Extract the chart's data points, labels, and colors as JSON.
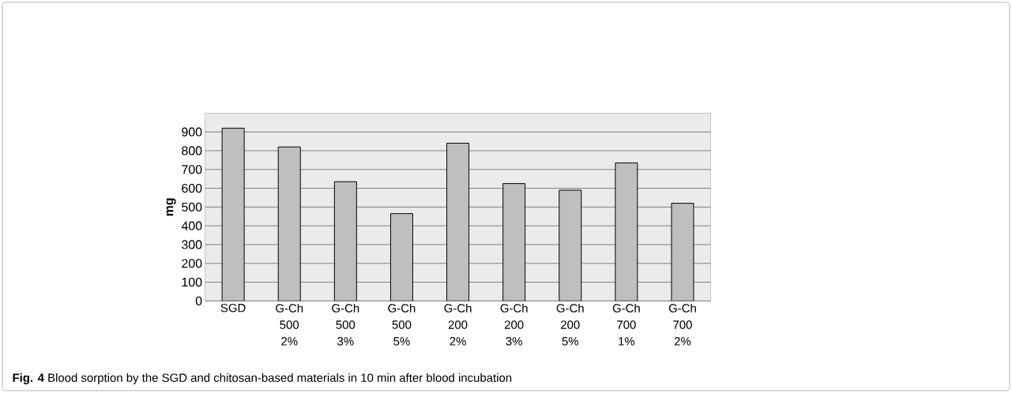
{
  "chart_data": {
    "type": "bar",
    "ylabel": "mg",
    "categories": [
      "SGD",
      "G-Ch 500 2%",
      "G-Ch 500 3%",
      "G-Ch 500 5%",
      "G-Ch 200 2%",
      "G-Ch 200 3%",
      "G-Ch 200 5%",
      "G-Ch 700 1%",
      "G-Ch 700 2%"
    ],
    "values": [
      920,
      820,
      635,
      465,
      840,
      625,
      590,
      735,
      520
    ],
    "color": "#bfbfbf",
    "ylim": [
      0,
      1000
    ],
    "yticks": [
      0,
      100,
      200,
      300,
      400,
      500,
      600,
      700,
      800,
      900
    ],
    "grid": "y",
    "annotations": [
      "**Fig. 4** Blood sorption by the SGD and chitosan-based materials in 10 min after blood incubation"
    ]
  }
}
